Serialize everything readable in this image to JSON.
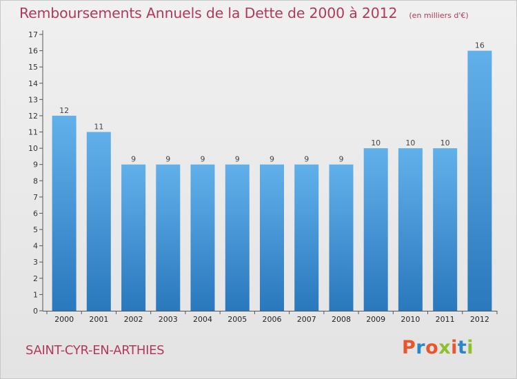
{
  "header": {
    "title": "Remboursements Annuels de la Dette de 2000 à 2012",
    "unit_note": "(en milliers d'€)"
  },
  "footer": {
    "commune": "SAINT-CYR-EN-ARTHIES",
    "logo_text": "Proxiti"
  },
  "colors": {
    "bar": "#3d8fd2",
    "bar_light": "#62b0ea",
    "title": "#b03a5b",
    "logo_letters": [
      "#e8562a",
      "#2c86c8",
      "#e8562a",
      "#8fbf2a",
      "#e8562a",
      "#2c86c8",
      "#8fbf2a"
    ]
  },
  "chart_data": {
    "type": "bar",
    "title": "Remboursements Annuels de la Dette de 2000 à 2012",
    "categories": [
      "2000",
      "2001",
      "2002",
      "2003",
      "2004",
      "2005",
      "2006",
      "2007",
      "2008",
      "2009",
      "2010",
      "2011",
      "2012"
    ],
    "values": [
      12,
      11,
      9,
      9,
      9,
      9,
      9,
      9,
      9,
      10,
      10,
      10,
      16
    ],
    "ylim": [
      0,
      17
    ],
    "yticks": [
      0,
      1,
      2,
      3,
      4,
      5,
      6,
      7,
      8,
      9,
      10,
      11,
      12,
      13,
      14,
      15,
      16,
      17
    ],
    "grid": false,
    "data_labels": true
  }
}
